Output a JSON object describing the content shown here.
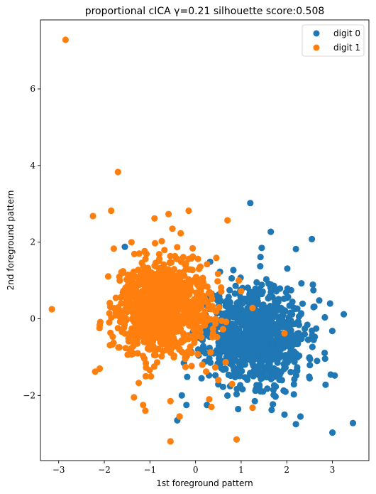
{
  "chart_data": {
    "type": "scatter",
    "title": "proportional cICA γ=0.21 silhouette score:0.508",
    "xlabel": "1st foreground pattern",
    "ylabel": "2nd foreground pattern",
    "xlim": [
      -3.4,
      3.8
    ],
    "ylim": [
      -3.7,
      7.8
    ],
    "xticks": [
      -3,
      -2,
      -1,
      0,
      1,
      2,
      3
    ],
    "yticks": [
      -2,
      0,
      2,
      4,
      6
    ],
    "legend_position": "top-right",
    "series": [
      {
        "name": "digit 0",
        "color": "#1f77b4",
        "cluster": {
          "count": 900,
          "cx": 1.3,
          "cy": -0.4,
          "sx": 0.55,
          "sy": 0.65,
          "seed": 11
        },
        "points": [
          {
            "x": 1.2,
            "y": 3.02
          },
          {
            "x": 1.65,
            "y": 2.27
          },
          {
            "x": 2.55,
            "y": 2.08
          },
          {
            "x": 2.2,
            "y": 1.82
          },
          {
            "x": 1.45,
            "y": 1.85
          },
          {
            "x": 2.95,
            "y": 0.4
          },
          {
            "x": 3.25,
            "y": 0.12
          },
          {
            "x": 3.05,
            "y": -1.48
          },
          {
            "x": 2.85,
            "y": -1.72
          },
          {
            "x": 3.0,
            "y": -2.97
          },
          {
            "x": 3.45,
            "y": -2.72
          },
          {
            "x": 2.2,
            "y": -2.75
          },
          {
            "x": 2.3,
            "y": -2.55
          },
          {
            "x": 1.95,
            "y": -2.5
          },
          {
            "x": 1.3,
            "y": -2.15
          },
          {
            "x": -0.3,
            "y": -2.0
          },
          {
            "x": -0.35,
            "y": -2.55
          },
          {
            "x": -0.4,
            "y": -2.65
          },
          {
            "x": -0.2,
            "y": -2.25
          },
          {
            "x": 0.25,
            "y": -2.25
          },
          {
            "x": -1.55,
            "y": 1.88
          },
          {
            "x": 0.5,
            "y": -1.6
          },
          {
            "x": 2.5,
            "y": -1.55
          }
        ]
      },
      {
        "name": "digit 1",
        "color": "#ff7f0e",
        "cluster": {
          "count": 1100,
          "cx": -0.75,
          "cy": 0.3,
          "sx": 0.5,
          "sy": 0.6,
          "seed": 29
        },
        "points": [
          {
            "x": -2.85,
            "y": 7.28
          },
          {
            "x": -1.7,
            "y": 3.83
          },
          {
            "x": -2.25,
            "y": 2.68
          },
          {
            "x": -1.85,
            "y": 2.82
          },
          {
            "x": -0.9,
            "y": 2.62
          },
          {
            "x": -0.15,
            "y": 2.82
          },
          {
            "x": 0.7,
            "y": 2.57
          },
          {
            "x": -3.15,
            "y": 0.25
          },
          {
            "x": -2.1,
            "y": -1.3
          },
          {
            "x": -2.2,
            "y": -1.38
          },
          {
            "x": -1.35,
            "y": -2.05
          },
          {
            "x": -1.15,
            "y": -2.25
          },
          {
            "x": -1.1,
            "y": -2.4
          },
          {
            "x": -0.55,
            "y": -2.15
          },
          {
            "x": -0.35,
            "y": -2.55
          },
          {
            "x": -0.55,
            "y": -3.2
          },
          {
            "x": 0.9,
            "y": -3.15
          },
          {
            "x": 1.25,
            "y": -2.32
          },
          {
            "x": 0.3,
            "y": -2.1
          },
          {
            "x": 0.35,
            "y": -2.3
          },
          {
            "x": 1.95,
            "y": -0.38
          },
          {
            "x": 1.0,
            "y": 0.72
          },
          {
            "x": 1.25,
            "y": 0.28
          },
          {
            "x": 0.95,
            "y": 1.0
          },
          {
            "x": 0.5,
            "y": -1.6
          },
          {
            "x": 0.8,
            "y": -1.7
          }
        ]
      }
    ]
  }
}
